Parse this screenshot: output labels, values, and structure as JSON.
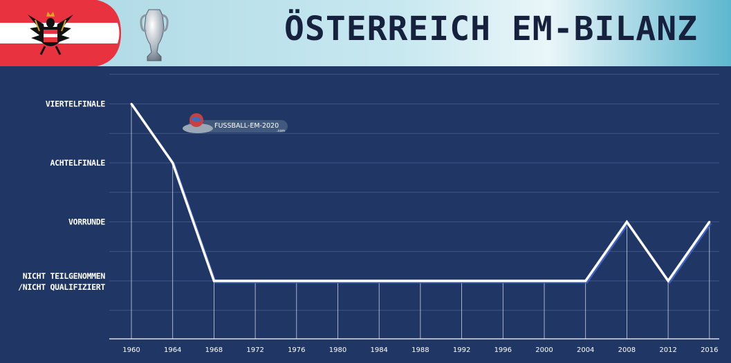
{
  "header": {
    "title": "ÖSTERREICH EM-BILANZ",
    "flag_colors": {
      "red": "#e8323f",
      "white": "#ffffff"
    },
    "trophy_icon": "trophy-icon",
    "eagle_icon": "eagle-coat-of-arms-icon"
  },
  "watermark": {
    "text": "FUSSBALL-EM-2020",
    "sub": ".com"
  },
  "colors": {
    "background": "#203766",
    "header_bg": "#bfe2ec",
    "line": "#ffffff",
    "line_shadow": "#3e63c0",
    "grid": "#4a6190"
  },
  "chart_data": {
    "type": "line",
    "title": "ÖSTERREICH EM-BILANZ",
    "x": [
      "1960",
      "1964",
      "1968",
      "1972",
      "1976",
      "1980",
      "1984",
      "1988",
      "1992",
      "1996",
      "2000",
      "2004",
      "2008",
      "2012",
      "2016"
    ],
    "y_levels": [
      "NICHT TEILGENOMMEN /NICHT QUALIFIZIERT",
      "VORRUNDE",
      "ACHTELFINALE",
      "VIERTELFINALE"
    ],
    "series": [
      {
        "values": [
          "VIERTELFINALE",
          "ACHTELFINALE",
          "NICHT TEILGENOMMEN /NICHT QUALIFIZIERT",
          "NICHT TEILGENOMMEN /NICHT QUALIFIZIERT",
          "NICHT TEILGENOMMEN /NICHT QUALIFIZIERT",
          "NICHT TEILGENOMMEN /NICHT QUALIFIZIERT",
          "NICHT TEILGENOMMEN /NICHT QUALIFIZIERT",
          "NICHT TEILGENOMMEN /NICHT QUALIFIZIERT",
          "NICHT TEILGENOMMEN /NICHT QUALIFIZIERT",
          "NICHT TEILGENOMMEN /NICHT QUALIFIZIERT",
          "NICHT TEILGENOMMEN /NICHT QUALIFIZIERT",
          "NICHT TEILGENOMMEN /NICHT QUALIFIZIERT",
          "VORRUNDE",
          "NICHT TEILGENOMMEN /NICHT QUALIFIZIERT",
          "VORRUNDE"
        ]
      }
    ],
    "y_tick_labels": [
      {
        "level": "VIERTELFINALE",
        "lines": [
          "VIERTELFINALE"
        ]
      },
      {
        "level": "ACHTELFINALE",
        "lines": [
          "ACHTELFINALE"
        ]
      },
      {
        "level": "VORRUNDE",
        "lines": [
          "VORRUNDE"
        ]
      },
      {
        "level": "NICHT TEILGENOMMEN /NICHT QUALIFIZIERT",
        "lines": [
          "NICHT TEILGENOMMEN",
          "/NICHT QUALIFIZIERT"
        ]
      }
    ],
    "grid": true,
    "legend": "none"
  }
}
